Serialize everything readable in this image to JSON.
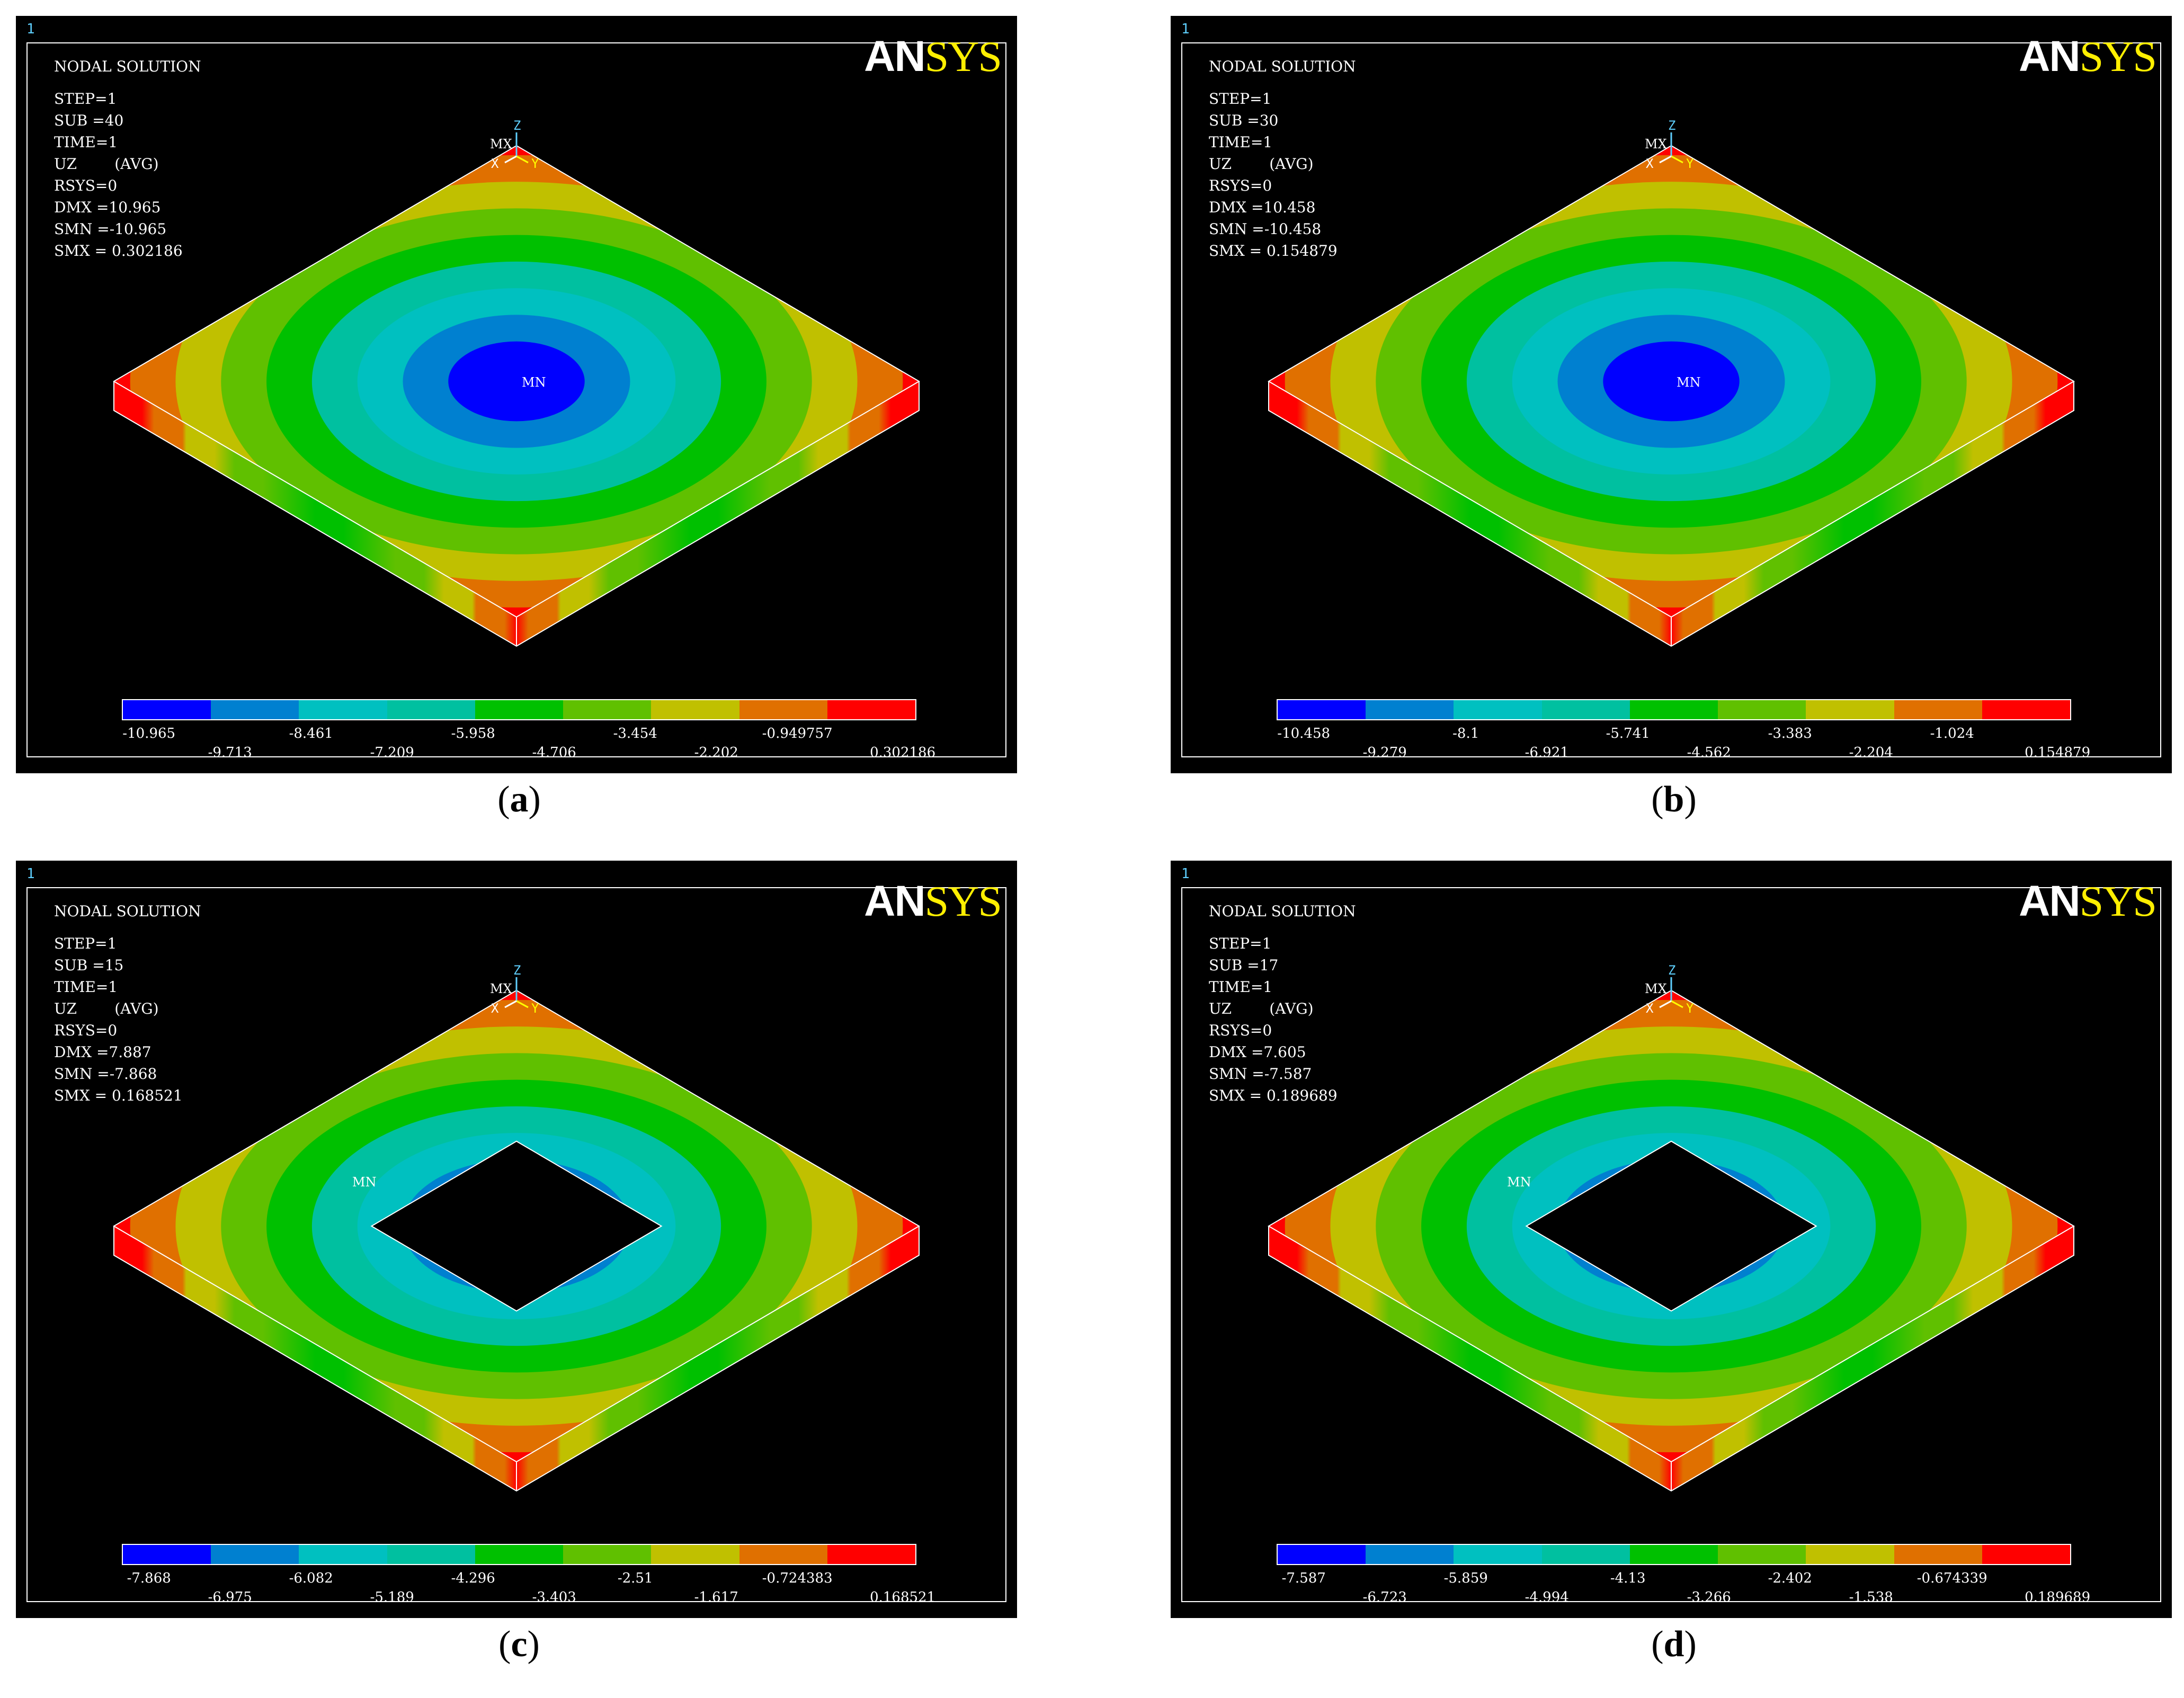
{
  "panels": [
    {
      "window_number": "1",
      "title": "NODAL SOLUTION",
      "info": [
        "STEP=1",
        "SUB =40",
        "TIME=1",
        "UZ        (AVG)",
        "RSYS=0",
        "DMX =10.965",
        "SMN =-10.965",
        "SMX = 0.302186"
      ],
      "legend_top": [
        "-10.965",
        "-8.461",
        "-5.958",
        "-3.454",
        "-0.949757"
      ],
      "legend_bottom": [
        "-9.713",
        "-7.209",
        "-4.706",
        "-2.202",
        "0.302186"
      ],
      "hole": false,
      "min_label": "MN",
      "max_label": "MX",
      "caption_letter": "a"
    },
    {
      "window_number": "1",
      "title": "NODAL SOLUTION",
      "info": [
        "STEP=1",
        "SUB =30",
        "TIME=1",
        "UZ        (AVG)",
        "RSYS=0",
        "DMX =10.458",
        "SMN =-10.458",
        "SMX = 0.154879"
      ],
      "legend_top": [
        "-10.458",
        "-8.1",
        "-5.741",
        "-3.383",
        "-1.024"
      ],
      "legend_bottom": [
        "-9.279",
        "-6.921",
        "-4.562",
        "-2.204",
        "0.154879"
      ],
      "hole": false,
      "min_label": "MN",
      "max_label": "MX",
      "caption_letter": "b"
    },
    {
      "window_number": "1",
      "title": "NODAL SOLUTION",
      "info": [
        "STEP=1",
        "SUB =15",
        "TIME=1",
        "UZ        (AVG)",
        "RSYS=0",
        "DMX =7.887",
        "SMN =-7.868",
        "SMX = 0.168521"
      ],
      "legend_top": [
        "-7.868",
        "-6.082",
        "-4.296",
        "-2.51",
        "-0.724383"
      ],
      "legend_bottom": [
        "-6.975",
        "-5.189",
        "-3.403",
        "-1.617",
        "0.168521"
      ],
      "hole": true,
      "min_label": "MN",
      "max_label": "MX",
      "caption_letter": "c"
    },
    {
      "window_number": "1",
      "title": "NODAL SOLUTION",
      "info": [
        "STEP=1",
        "SUB =17",
        "TIME=1",
        "UZ        (AVG)",
        "RSYS=0",
        "DMX =7.605",
        "SMN =-7.587",
        "SMX = 0.189689"
      ],
      "legend_top": [
        "-7.587",
        "-5.859",
        "-4.13",
        "-2.402",
        "-0.674339"
      ],
      "legend_bottom": [
        "-6.723",
        "-4.994",
        "-3.266",
        "-1.538",
        "0.189689"
      ],
      "hole": true,
      "min_label": "MN",
      "max_label": "MX",
      "caption_letter": "d"
    }
  ],
  "logo": {
    "part1": "AN",
    "part2": "SYS"
  },
  "axis_labels": {
    "x": "X",
    "y": "Y",
    "z": "Z"
  },
  "contour_colors": [
    "#0000ff",
    "#0080d0",
    "#00c0c0",
    "#00c0a0",
    "#00c000",
    "#60c000",
    "#c0c000",
    "#e07000",
    "#ff0000"
  ],
  "edge_color": "#ffffff"
}
